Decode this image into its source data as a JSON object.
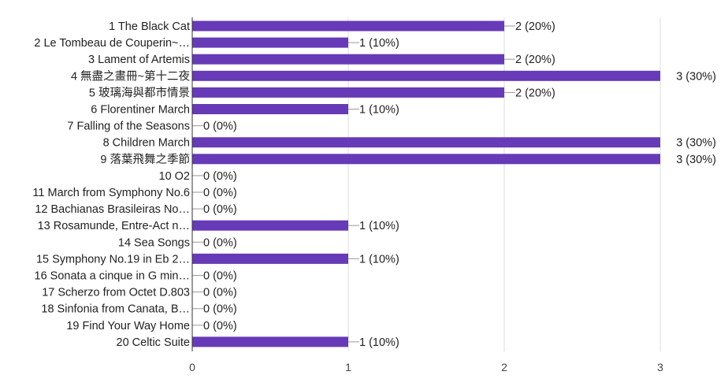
{
  "chart_data": {
    "type": "bar",
    "orientation": "horizontal",
    "title": "",
    "xlabel": "",
    "ylabel": "",
    "xlim": [
      0,
      3
    ],
    "x_ticks": [
      "0",
      "1",
      "2",
      "3"
    ],
    "grid": true,
    "bar_color": "#673ab7",
    "categories": [
      "1 The Black Cat",
      "2 Le Tombeau de Couperin~…",
      "3 Lament of Artemis",
      "4 無盡之畫冊~第十二夜",
      "5 玻璃海與都市情景",
      "6 Florentiner March",
      "7 Falling of the Seasons",
      "8 Children March",
      "9 落葉飛舞之季節",
      "10 O2",
      "11 March from Symphony No.6",
      "12 Bachianas Brasileiras No…",
      "13 Rosamunde, Entre-Act n…",
      "14 Sea Songs",
      "15 Symphony No.19 in Eb 2…",
      "16 Sonata a cinque in G min…",
      "17 Scherzo from Octet D.803",
      "18 Sinfonia from Canata, B…",
      "19 Find Your Way Home",
      "20 Celtic Suite"
    ],
    "values": [
      2,
      1,
      2,
      3,
      2,
      1,
      0,
      3,
      3,
      0,
      0,
      0,
      1,
      0,
      1,
      0,
      0,
      0,
      0,
      1
    ],
    "value_labels": [
      "2 (20%)",
      "1 (10%)",
      "2 (20%)",
      "3 (30%)",
      "2 (20%)",
      "1 (10%)",
      "0 (0%)",
      "3 (30%)",
      "3 (30%)",
      "0 (0%)",
      "0 (0%)",
      "0 (0%)",
      "1 (10%)",
      "0 (0%)",
      "1 (10%)",
      "0 (0%)",
      "0 (0%)",
      "0 (0%)",
      "0 (0%)",
      "1 (10%)"
    ]
  }
}
